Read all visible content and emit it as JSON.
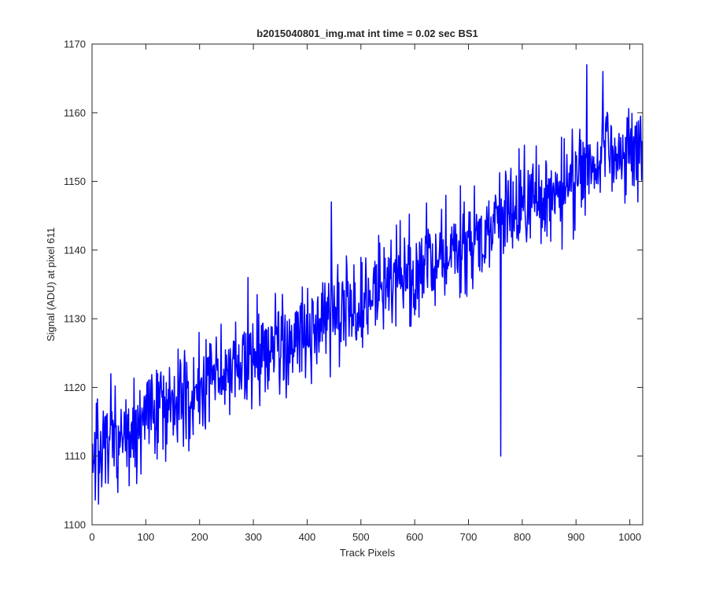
{
  "chart_data": {
    "type": "line",
    "title": "b2015040801_img.mat int time = 0.02 sec   BS1",
    "xlabel": "Track Pixels",
    "ylabel": "Signal (ADU) at pixel 611",
    "xlim": [
      0,
      1024
    ],
    "ylim": [
      1100,
      1170
    ],
    "xticks": [
      0,
      100,
      200,
      300,
      400,
      500,
      600,
      700,
      800,
      900,
      1000
    ],
    "yticks": [
      1100,
      1110,
      1120,
      1130,
      1140,
      1150,
      1160,
      1170
    ],
    "grid": false,
    "series": [
      {
        "name": "",
        "color": "#0000ff",
        "x": [
          0,
          25,
          50,
          75,
          100,
          125,
          150,
          175,
          200,
          225,
          250,
          275,
          300,
          325,
          350,
          375,
          400,
          425,
          450,
          475,
          500,
          525,
          550,
          575,
          600,
          625,
          650,
          675,
          700,
          725,
          750,
          775,
          800,
          825,
          850,
          875,
          900,
          925,
          950,
          975,
          1000,
          1024
        ],
        "y": [
          1111,
          1112,
          1113,
          1114,
          1116,
          1117,
          1117,
          1118,
          1119,
          1121,
          1122,
          1123,
          1124,
          1125,
          1126,
          1127,
          1128,
          1130,
          1131,
          1132,
          1133,
          1134,
          1135,
          1136,
          1137,
          1138,
          1139,
          1140,
          1141,
          1142,
          1144,
          1145,
          1146,
          1147,
          1148,
          1149,
          1151,
          1152,
          1153,
          1154,
          1155,
          1156
        ],
        "noise_amplitude": 5,
        "spikes": [
          {
            "x": 12,
            "y": 1103
          },
          {
            "x": 35,
            "y": 1122
          },
          {
            "x": 83,
            "y": 1106
          },
          {
            "x": 290,
            "y": 1136
          },
          {
            "x": 445,
            "y": 1147
          },
          {
            "x": 460,
            "y": 1123
          },
          {
            "x": 760,
            "y": 1110
          },
          {
            "x": 920,
            "y": 1167
          },
          {
            "x": 950,
            "y": 1166
          },
          {
            "x": 1015,
            "y": 1147
          }
        ]
      }
    ]
  }
}
